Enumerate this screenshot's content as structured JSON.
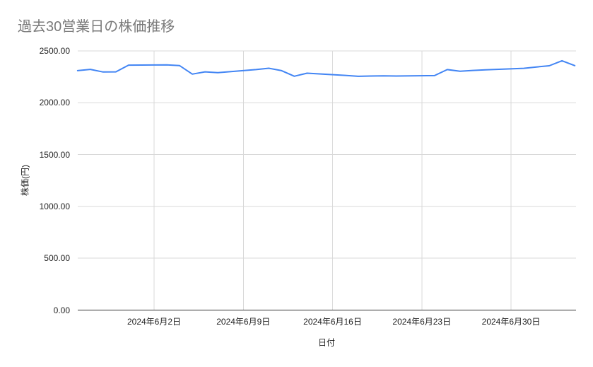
{
  "chart_data": {
    "type": "line",
    "title": "過去30営業日の株価推移",
    "xlabel": "日付",
    "ylabel": "株価(円)",
    "ylim": [
      0,
      2500
    ],
    "grid": true,
    "legend": "none",
    "colors": {
      "line": "#4285f4",
      "grid": "#d9d9d9",
      "axis_line": "#333333",
      "title_text": "#7a7a7a",
      "tick_text": "#222222"
    },
    "y_ticks": [
      {
        "value": 0,
        "label": "0.00"
      },
      {
        "value": 500,
        "label": "500.00"
      },
      {
        "value": 1000,
        "label": "1000.00"
      },
      {
        "value": 1500,
        "label": "1500.00"
      },
      {
        "value": 2000,
        "label": "2000.00"
      },
      {
        "value": 2500,
        "label": "2500.00"
      }
    ],
    "x_ticks": [
      {
        "date": "2024-06-02",
        "label": "2024年6月2日"
      },
      {
        "date": "2024-06-09",
        "label": "2024年6月9日"
      },
      {
        "date": "2024-06-16",
        "label": "2024年6月16日"
      },
      {
        "date": "2024-06-23",
        "label": "2024年6月23日"
      },
      {
        "date": "2024-06-30",
        "label": "2024年6月30日"
      }
    ],
    "series": [
      {
        "name": "株価",
        "color": "#4285f4",
        "points": [
          {
            "date": "2024-05-27",
            "value": 2310
          },
          {
            "date": "2024-05-28",
            "value": 2322
          },
          {
            "date": "2024-05-29",
            "value": 2297
          },
          {
            "date": "2024-05-30",
            "value": 2298
          },
          {
            "date": "2024-05-31",
            "value": 2363
          },
          {
            "date": "2024-06-03",
            "value": 2365
          },
          {
            "date": "2024-06-04",
            "value": 2358
          },
          {
            "date": "2024-06-05",
            "value": 2276
          },
          {
            "date": "2024-06-06",
            "value": 2298
          },
          {
            "date": "2024-06-07",
            "value": 2290
          },
          {
            "date": "2024-06-10",
            "value": 2320
          },
          {
            "date": "2024-06-11",
            "value": 2333
          },
          {
            "date": "2024-06-12",
            "value": 2310
          },
          {
            "date": "2024-06-13",
            "value": 2256
          },
          {
            "date": "2024-06-14",
            "value": 2285
          },
          {
            "date": "2024-06-17",
            "value": 2264
          },
          {
            "date": "2024-06-18",
            "value": 2255
          },
          {
            "date": "2024-06-19",
            "value": 2258
          },
          {
            "date": "2024-06-20",
            "value": 2260
          },
          {
            "date": "2024-06-21",
            "value": 2258
          },
          {
            "date": "2024-06-24",
            "value": 2262
          },
          {
            "date": "2024-06-25",
            "value": 2320
          },
          {
            "date": "2024-06-26",
            "value": 2304
          },
          {
            "date": "2024-06-27",
            "value": 2312
          },
          {
            "date": "2024-06-28",
            "value": 2317
          },
          {
            "date": "2024-07-01",
            "value": 2332
          },
          {
            "date": "2024-07-02",
            "value": 2345
          },
          {
            "date": "2024-07-03",
            "value": 2357
          },
          {
            "date": "2024-07-04",
            "value": 2405
          },
          {
            "date": "2024-07-05",
            "value": 2358
          }
        ]
      }
    ]
  }
}
